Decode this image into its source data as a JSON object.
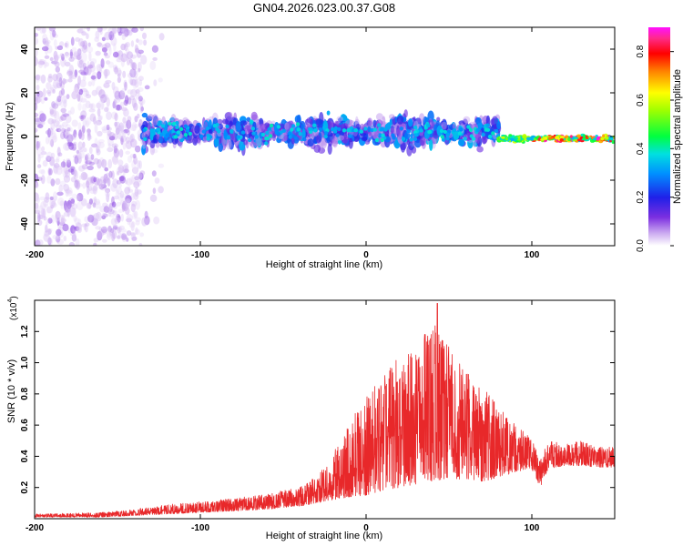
{
  "title": "GN04.2026.023.00.37.G08",
  "colors": {
    "snr_line": "#e8282a",
    "scatter_stops": [
      "#ffffff",
      "#e4cdf5",
      "#b58fe8",
      "#7b2fe0",
      "#5a10d8",
      "#1a1ae0",
      "#00a0ff",
      "#00e0c0",
      "#40ff40",
      "#ffff00",
      "#ff8000",
      "#ff0000",
      "#ff2a8a",
      "#ff00ff"
    ]
  },
  "chart_data": [
    {
      "type": "scatter",
      "name": "spectrogram",
      "title": "GN04.2026.023.00.37.G08",
      "xlabel": "Height of straight line (km)",
      "ylabel": "Frequency (Hz)",
      "xlim": [
        -200,
        150
      ],
      "ylim": [
        -50,
        50
      ],
      "xticks": [
        -200,
        -100,
        0,
        100
      ],
      "xtick_labels": [
        "-200",
        "-100",
        "0",
        "100"
      ],
      "yticks": [
        -40,
        -20,
        0,
        20,
        40
      ],
      "ytick_labels": [
        "-40",
        "-20",
        "0",
        "20",
        "40"
      ],
      "description_series": [
        {
          "name": "noise_region",
          "x_range": [
            -200,
            -135
          ],
          "freq_spread": 50,
          "amplitude_range": [
            0.02,
            0.12
          ]
        },
        {
          "name": "signal_band",
          "x_range": [
            -135,
            80
          ],
          "freq_center": 2,
          "freq_spread": 12,
          "amplitude_range": [
            0.05,
            0.35
          ]
        },
        {
          "name": "converged_tone",
          "x_range": [
            80,
            150
          ],
          "freq_center": -1,
          "freq_spread": 2,
          "amplitude_range": [
            0.3,
            0.9
          ]
        }
      ],
      "colorbar": {
        "label": "Normalized spectral amplitude",
        "range": [
          0,
          0.9
        ],
        "ticks": [
          0,
          0.2,
          0.4,
          0.6,
          0.8
        ],
        "tick_labels": [
          "0.0",
          "0.2",
          "0.4",
          "0.6",
          "0.8"
        ]
      }
    },
    {
      "type": "line",
      "name": "snr",
      "xlabel": "Height of straight line (km)",
      "ylabel": "SNR (10 * v/v)",
      "y_multiplier": "(x10",
      "y_multiplier_exp": "4",
      "y_multiplier_close": ")",
      "xlim": [
        -200,
        150
      ],
      "ylim": [
        0,
        1.4
      ],
      "xticks": [
        -200,
        -100,
        0,
        100
      ],
      "xtick_labels": [
        "-200",
        "-100",
        "0",
        "100"
      ],
      "yticks": [
        0.2,
        0.4,
        0.6,
        0.8,
        1.0,
        1.2
      ],
      "ytick_labels": [
        "0.2",
        "0.4",
        "0.6",
        "0.8",
        "1.0",
        "1.2"
      ],
      "envelope": {
        "x": [
          -200,
          -160,
          -140,
          -120,
          -100,
          -80,
          -60,
          -40,
          -30,
          -20,
          -10,
          0,
          10,
          20,
          30,
          40,
          50,
          60,
          70,
          80,
          90,
          100,
          105,
          110,
          120,
          130,
          140,
          150
        ],
        "low": [
          0.01,
          0.01,
          0.02,
          0.03,
          0.04,
          0.05,
          0.06,
          0.08,
          0.1,
          0.12,
          0.14,
          0.15,
          0.18,
          0.2,
          0.22,
          0.24,
          0.26,
          0.25,
          0.24,
          0.26,
          0.3,
          0.32,
          0.2,
          0.32,
          0.34,
          0.34,
          0.33,
          0.33
        ],
        "high": [
          0.03,
          0.04,
          0.06,
          0.09,
          0.11,
          0.13,
          0.16,
          0.2,
          0.28,
          0.42,
          0.62,
          0.78,
          0.92,
          1.05,
          1.08,
          1.3,
          1.1,
          0.95,
          0.85,
          0.72,
          0.6,
          0.52,
          0.38,
          0.5,
          0.48,
          0.5,
          0.46,
          0.46
        ]
      },
      "peak": {
        "x": 43,
        "y": 1.38
      }
    }
  ]
}
